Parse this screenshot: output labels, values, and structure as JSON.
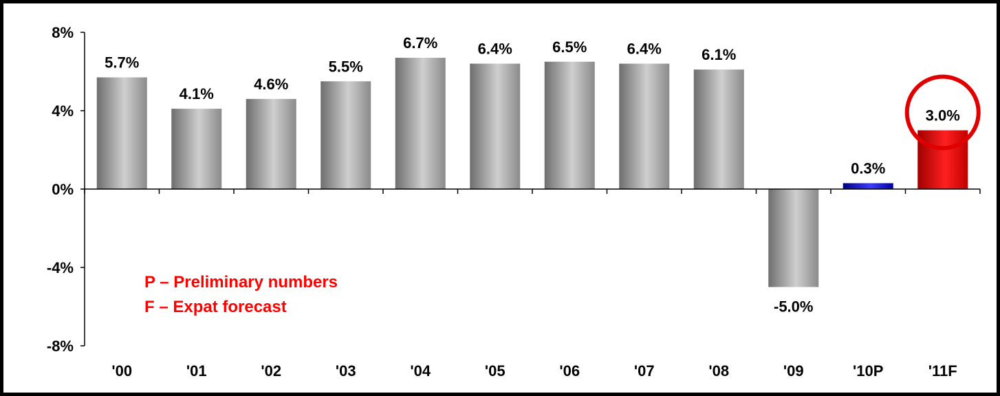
{
  "chart_data": {
    "type": "bar",
    "categories": [
      "'00",
      "'01",
      "'02",
      "'03",
      "'04",
      "'05",
      "'06",
      "'07",
      "'08",
      "'09",
      "'10P",
      "'11F"
    ],
    "values": [
      5.7,
      4.1,
      4.6,
      5.5,
      6.7,
      6.4,
      6.5,
      6.4,
      6.1,
      -5.0,
      0.3,
      3.0
    ],
    "data_labels": [
      "5.7%",
      "4.1%",
      "4.6%",
      "5.5%",
      "6.7%",
      "6.4%",
      "6.5%",
      "6.4%",
      "6.1%",
      "-5.0%",
      "0.3%",
      "3.0%"
    ],
    "bar_colors": [
      "gray",
      "gray",
      "gray",
      "gray",
      "gray",
      "gray",
      "gray",
      "gray",
      "gray",
      "gray",
      "blue",
      "red"
    ],
    "ylim": [
      -8,
      8
    ],
    "yticks": [
      -8,
      -4,
      0,
      4,
      8
    ],
    "ytick_labels": [
      "-8%",
      "-4%",
      "0%",
      "4%",
      "8%"
    ],
    "highlight_circle_index": 11,
    "grid": false,
    "legend": "none",
    "title": "",
    "xlabel": "",
    "ylabel": ""
  },
  "notes": [
    "P – Preliminary numbers",
    "F – Expat forecast"
  ],
  "colors": {
    "gray_dark": "#7a7a7a",
    "gray_light": "#c8c8c8",
    "blue_dark": "#00008b",
    "blue_light": "#3a3aff",
    "red_dark": "#b00000",
    "red_light": "#ff2a2a",
    "highlight_circle": "#e00000",
    "note_text": "#ff0000",
    "axis": "#000000"
  }
}
